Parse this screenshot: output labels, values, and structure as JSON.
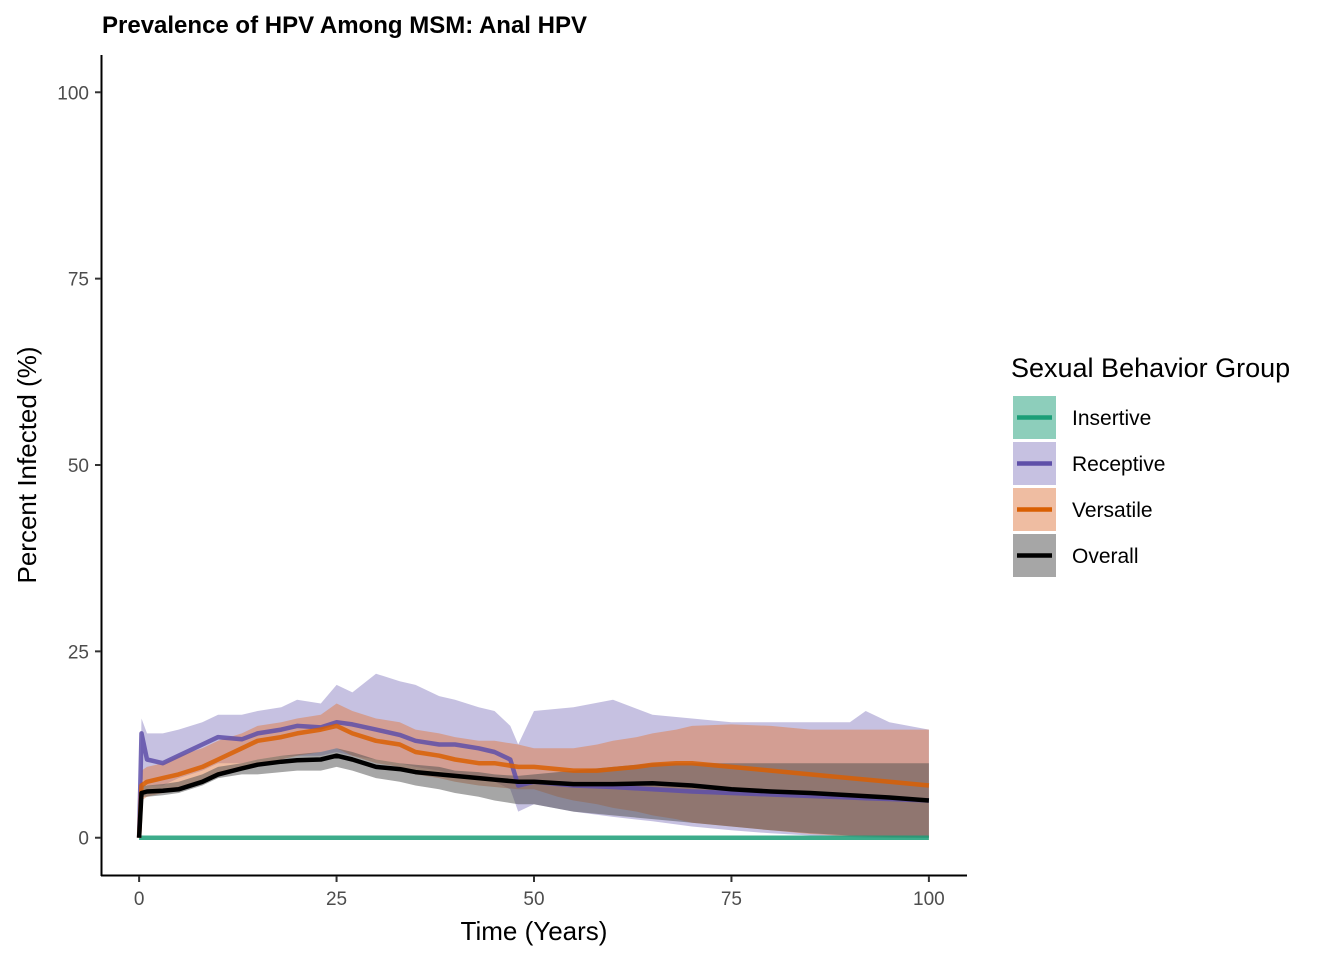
{
  "chart_data": {
    "type": "line",
    "title": "Prevalence of HPV Among MSM: Anal HPV",
    "xlabel": "Time (Years)",
    "ylabel": "Percent Infected (%)",
    "xlim": [
      -4.7,
      104.7
    ],
    "ylim": [
      -5,
      105
    ],
    "x_ticks": [
      0,
      25,
      50,
      75,
      100
    ],
    "y_ticks": [
      0,
      25,
      50,
      75,
      100
    ],
    "grid": false,
    "legend": {
      "title": "Sexual Behavior Group",
      "placement": "right"
    },
    "series": [
      {
        "name": "Insertive",
        "color": "#1b9e77",
        "band_color": "#1b9e77",
        "x": [
          0,
          0.3,
          100
        ],
        "y": [
          0,
          0,
          0
        ],
        "lower": [
          0,
          0,
          0
        ],
        "upper": [
          0,
          0,
          0
        ]
      },
      {
        "name": "Receptive",
        "color": "#5e4fa8",
        "band_color": "#8d84c4",
        "x": [
          0,
          0.3,
          1,
          3,
          5,
          8,
          10,
          13,
          15,
          18,
          20,
          23,
          25,
          27,
          30,
          33,
          35,
          38,
          40,
          43,
          45,
          47,
          48,
          50,
          55,
          60,
          65,
          70,
          75,
          80,
          85,
          90,
          92,
          95,
          100
        ],
        "y": [
          0,
          14,
          10.5,
          10,
          11,
          12.5,
          13.5,
          13.2,
          14,
          14.5,
          15,
          14.8,
          15.5,
          15.2,
          14.5,
          13.8,
          13,
          12.5,
          12.5,
          12,
          11.5,
          10.5,
          7,
          7.5,
          7,
          6.8,
          6.5,
          6.2,
          6,
          5.8,
          5.6,
          5.4,
          5.3,
          5.2,
          5
        ],
        "lower": [
          0,
          8,
          7,
          7,
          8,
          9,
          10,
          10,
          10.5,
          11,
          11,
          11,
          11.5,
          11,
          10.5,
          10,
          9.5,
          9,
          8.5,
          8,
          7.5,
          6.5,
          3.5,
          4.5,
          3.5,
          2.8,
          2.2,
          1.5,
          1,
          0.6,
          0.3,
          0.1,
          0,
          0,
          0
        ],
        "upper": [
          0,
          16,
          14,
          14,
          14.5,
          15.5,
          16.5,
          16.5,
          17,
          17.5,
          18.5,
          18,
          20.5,
          19.5,
          22,
          21,
          20.5,
          19,
          18.5,
          17.5,
          17,
          15,
          12.5,
          17,
          17.5,
          18.5,
          16.5,
          16,
          15.5,
          15.5,
          15.5,
          15.5,
          17,
          15.5,
          14.5
        ]
      },
      {
        "name": "Versatile",
        "color": "#d95f02",
        "band_color": "#e07b45",
        "x": [
          0,
          0.3,
          1,
          3,
          5,
          8,
          10,
          13,
          15,
          18,
          20,
          23,
          25,
          27,
          30,
          33,
          35,
          38,
          40,
          43,
          45,
          48,
          50,
          53,
          55,
          58,
          60,
          63,
          65,
          68,
          70,
          75,
          80,
          85,
          90,
          95,
          100
        ],
        "y": [
          0,
          7,
          7.5,
          8,
          8.5,
          9.5,
          10.5,
          12,
          13,
          13.5,
          14,
          14.5,
          15,
          14,
          13,
          12.5,
          11.5,
          11,
          10.5,
          10,
          10,
          9.5,
          9.5,
          9.2,
          9,
          9,
          9.2,
          9.5,
          9.8,
          10,
          10,
          9.5,
          9,
          8.5,
          8,
          7.5,
          7
        ],
        "lower": [
          0,
          5,
          5.5,
          6,
          6.5,
          7.5,
          8.5,
          9.5,
          10,
          10.5,
          11,
          11.5,
          12,
          11,
          10,
          9.5,
          8.5,
          8,
          7.5,
          7,
          6.8,
          6.5,
          6.5,
          5.5,
          5,
          4.5,
          4,
          3.5,
          3,
          2.5,
          2,
          1.5,
          1,
          0.5,
          0.2,
          0,
          0
        ],
        "upper": [
          0,
          9,
          9.5,
          10,
          11,
          12,
          13,
          14,
          15,
          15.5,
          16,
          16.5,
          18,
          17,
          16,
          15.5,
          14.5,
          14,
          13.5,
          13,
          13,
          12.5,
          12,
          12,
          12,
          12.5,
          13,
          13.5,
          14,
          14.5,
          15,
          15.2,
          15,
          14.5,
          14.5,
          14.5,
          14.5
        ]
      },
      {
        "name": "Overall",
        "color": "#000000",
        "band_color": "#4d4d4d",
        "x": [
          0,
          0.3,
          1,
          3,
          5,
          8,
          10,
          13,
          15,
          18,
          20,
          23,
          25,
          27,
          30,
          33,
          35,
          38,
          40,
          43,
          45,
          48,
          50,
          55,
          60,
          65,
          70,
          75,
          80,
          85,
          90,
          95,
          100
        ],
        "y": [
          0,
          6,
          6.2,
          6.3,
          6.5,
          7.5,
          8.5,
          9.3,
          9.8,
          10.2,
          10.4,
          10.5,
          11,
          10.5,
          9.5,
          9.2,
          8.8,
          8.5,
          8.3,
          8,
          7.8,
          7.5,
          7.5,
          7.2,
          7.2,
          7.3,
          7,
          6.5,
          6.2,
          6,
          5.7,
          5.4,
          5
        ],
        "lower": [
          0,
          5.5,
          5.5,
          5.7,
          6,
          7,
          8,
          8.5,
          8.5,
          8.8,
          9,
          9,
          9.5,
          9,
          8,
          7.5,
          7,
          6.5,
          6,
          5.5,
          5,
          4.5,
          4.5,
          3.5,
          3,
          2.5,
          2,
          1.5,
          1,
          0.6,
          0.3,
          0.1,
          0
        ],
        "upper": [
          0,
          7,
          7,
          7.2,
          7.5,
          8.5,
          9.5,
          10,
          10.5,
          11,
          11.2,
          11.5,
          12,
          11.5,
          10.5,
          10,
          9.8,
          9.5,
          9,
          8.8,
          8.5,
          8.3,
          8.5,
          9,
          9.5,
          10,
          10,
          10,
          10,
          10,
          10,
          10,
          10
        ]
      }
    ]
  }
}
